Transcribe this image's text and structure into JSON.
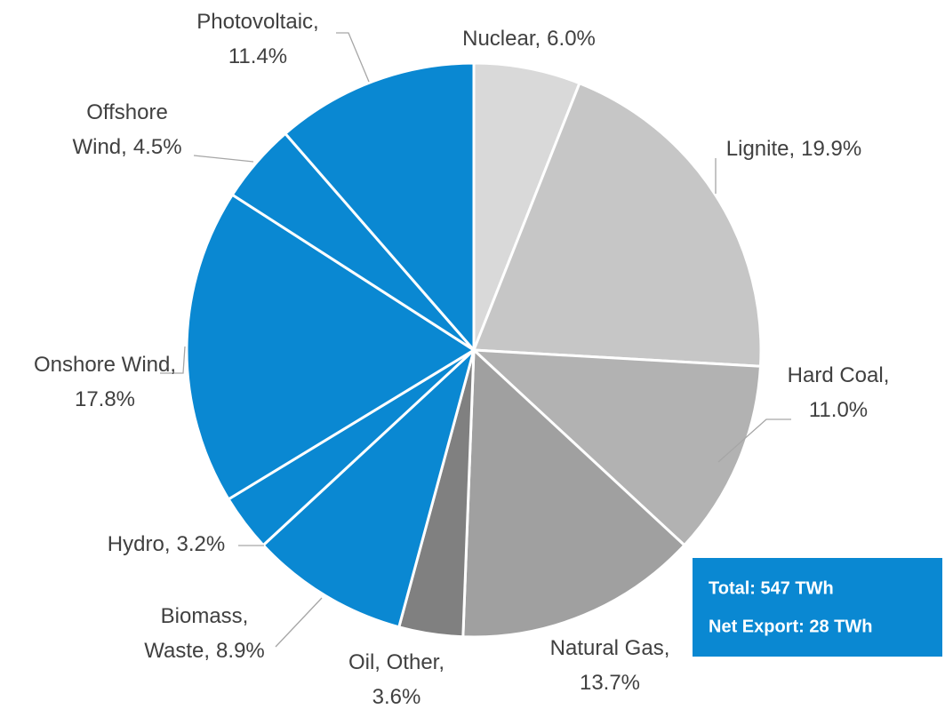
{
  "chart_data": {
    "type": "pie",
    "categories": [
      "Nuclear,",
      "Lignite,",
      "Hard Coal,",
      "Natural Gas,",
      "Oil, Other,",
      "Biomass, Waste,",
      "Hydro,",
      "Onshore Wind,",
      "Offshore Wind,",
      "Photovoltaic,"
    ],
    "values": [
      6.0,
      19.9,
      11.0,
      13.7,
      3.6,
      8.9,
      3.2,
      17.8,
      4.5,
      11.4
    ],
    "value_labels": [
      "6.0%",
      "19.9%",
      "11.0%",
      "13.7%",
      "3.6%",
      "8.9%",
      "3.2%",
      "17.8%",
      "4.5%",
      "11.4%"
    ],
    "colors": [
      "#d9d9d9",
      "#c6c6c6",
      "#b2b2b2",
      "#a0a0a0",
      "#808080",
      "#0a88d2",
      "#0a88d2",
      "#0a88d2",
      "#0a88d2",
      "#0a88d2"
    ],
    "annotations": [
      "Total: 547 TWh",
      "Net Export: 28 TWh"
    ]
  }
}
